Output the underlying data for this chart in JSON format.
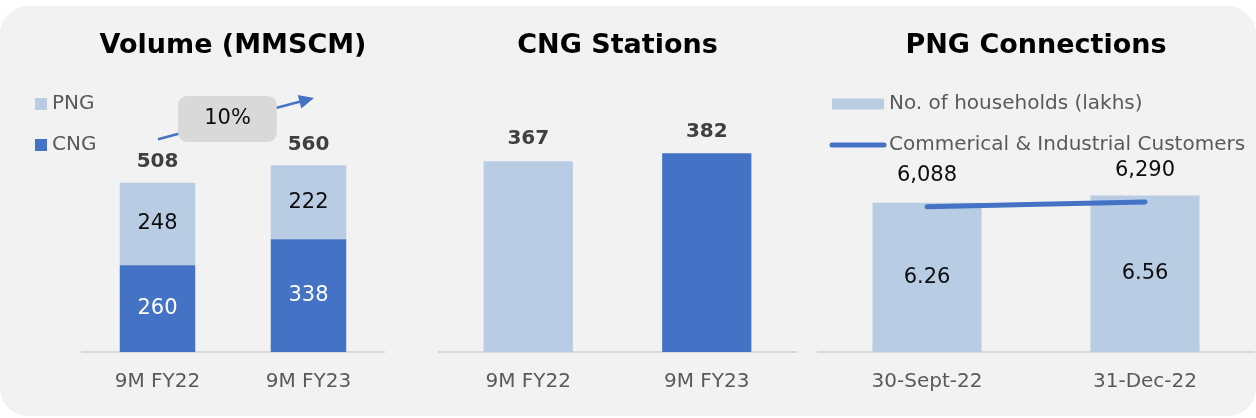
{
  "chart_data": [
    {
      "type": "bar",
      "title": "Volume (MMSCM)",
      "categories": [
        "9M FY22",
        "9M FY23"
      ],
      "stacked": true,
      "series": [
        {
          "name": "CNG",
          "color": "#4472c4",
          "values": [
            260,
            338
          ]
        },
        {
          "name": "PNG",
          "color": "#b8cce4",
          "values": [
            248,
            222
          ]
        }
      ],
      "totals": [
        "508",
        "560"
      ],
      "data_labels": true,
      "legend": "top left",
      "annotations": [
        "10%"
      ],
      "tick_labels": "x"
    },
    {
      "type": "bar",
      "title": "CNG Stations",
      "categories": [
        "9M FY22",
        "9M FY23"
      ],
      "values": [
        367,
        382
      ],
      "colors": [
        "#b8cce4",
        "#4472c4"
      ],
      "data_labels": true,
      "tick_labels": "x"
    },
    {
      "type": "bar",
      "title": "PNG Connections",
      "categories": [
        "30-Sept-22",
        "31-Dec-22"
      ],
      "series": [
        {
          "name": "No. of households (lakhs)",
          "color": "#b8cce4",
          "values": [
            6.26,
            6.56
          ]
        },
        {
          "name": "Commerical & Industrial Customers",
          "type": "line",
          "axis": "y2",
          "color": "#4472c4",
          "values": [
            6088,
            6290
          ],
          "value_labels": [
            "6,088",
            "6,290"
          ]
        }
      ],
      "data_labels": true,
      "legend": "top left",
      "tick_labels": "x"
    }
  ]
}
